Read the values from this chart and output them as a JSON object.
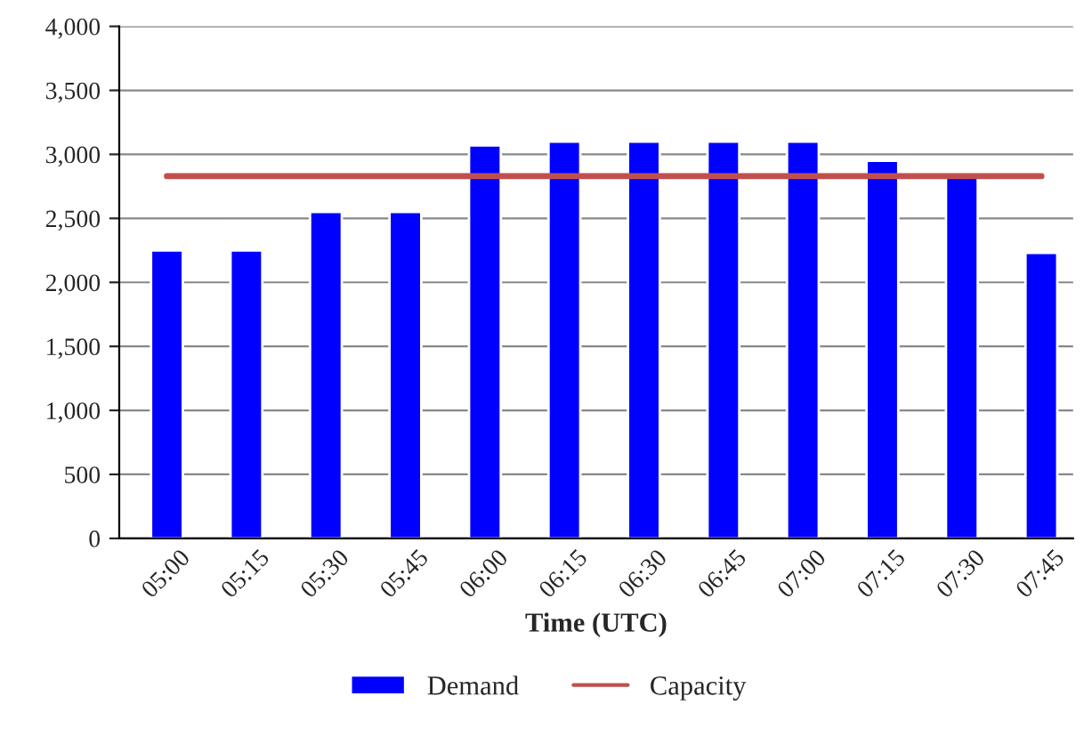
{
  "chart_data": {
    "type": "bar",
    "xlabel": "Time (UTC)",
    "categories": [
      "05:00",
      "05:15",
      "05:30",
      "05:45",
      "06:00",
      "06:15",
      "06:30",
      "06:45",
      "07:00",
      "07:15",
      "07:30",
      "07:45"
    ],
    "series": [
      {
        "name": "Demand",
        "color": "#0000ff",
        "values": [
          2250,
          2250,
          2550,
          2550,
          3070,
          3100,
          3100,
          3100,
          3100,
          2950,
          2850,
          2230
        ]
      },
      {
        "name": "Capacity",
        "type": "line",
        "color": "#c0504d",
        "values": [
          2830,
          2830,
          2830,
          2830,
          2830,
          2830,
          2830,
          2830,
          2830,
          2830,
          2830,
          2830
        ]
      }
    ],
    "ylim": [
      0,
      4000
    ],
    "yticks": [
      0,
      {
        "value": 500,
        "label": "500"
      },
      {
        "value": 1000,
        "label": "1,000"
      },
      {
        "value": 1500,
        "label": "1,500"
      },
      {
        "value": 2000,
        "label": "2,000"
      },
      {
        "value": 2500,
        "label": "2,500"
      },
      {
        "value": 3000,
        "label": "3,000"
      },
      {
        "value": 3500,
        "label": "3,500"
      },
      {
        "value": 4000,
        "label": "4,000"
      }
    ],
    "grid": "y",
    "legend": "bottom"
  }
}
